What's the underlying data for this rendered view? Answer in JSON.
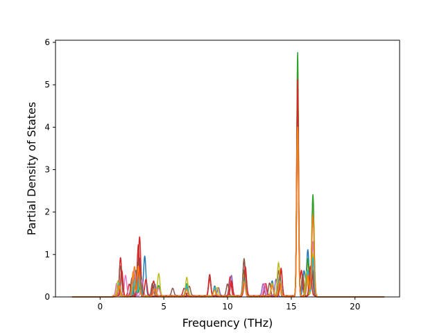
{
  "chart_data": {
    "type": "line",
    "title": "",
    "xlabel": "Frequency (THz)",
    "ylabel": "Partial Density of States",
    "xlim": [
      -3.5,
      23.5
    ],
    "ylim": [
      0,
      6.05
    ],
    "xticks": [
      0,
      5,
      10,
      15,
      20
    ],
    "yticks": [
      0,
      1,
      2,
      3,
      4,
      5,
      6
    ],
    "grid": false,
    "legend": "none",
    "x_range_of_data": [
      -2.2,
      22.3
    ],
    "colors": [
      "#1f77b4",
      "#ff7f0e",
      "#2ca02c",
      "#d62728",
      "#9467bd",
      "#8c564b",
      "#e377c2",
      "#7f7f7f",
      "#bcbd22",
      "#17becf"
    ],
    "series": [
      {
        "color": "#1f77b4",
        "peaks": [
          [
            1.5,
            0.3
          ],
          [
            2.7,
            0.5
          ],
          [
            3.1,
            0.9
          ],
          [
            3.5,
            0.95
          ],
          [
            4.3,
            0.3
          ],
          [
            6.8,
            0.25
          ],
          [
            9.0,
            0.25
          ],
          [
            11.3,
            0.6
          ],
          [
            13.5,
            0.35
          ],
          [
            14.1,
            0.5
          ],
          [
            15.5,
            5.3
          ],
          [
            16.0,
            0.6
          ],
          [
            16.3,
            1.1
          ],
          [
            16.7,
            0.6
          ]
        ]
      },
      {
        "color": "#ff7f0e",
        "peaks": [
          [
            1.5,
            0.35
          ],
          [
            2.7,
            0.7
          ],
          [
            3.1,
            0.6
          ],
          [
            4.3,
            0.25
          ],
          [
            6.8,
            0.2
          ],
          [
            9.0,
            0.2
          ],
          [
            11.3,
            0.5
          ],
          [
            13.5,
            0.3
          ],
          [
            14.1,
            0.45
          ],
          [
            15.5,
            5.5
          ],
          [
            16.3,
            0.8
          ],
          [
            16.7,
            2.3
          ]
        ]
      },
      {
        "color": "#2ca02c",
        "peaks": [
          [
            1.5,
            0.3
          ],
          [
            2.8,
            0.6
          ],
          [
            3.2,
            0.5
          ],
          [
            4.6,
            0.25
          ],
          [
            6.8,
            0.3
          ],
          [
            9.0,
            0.2
          ],
          [
            11.3,
            0.6
          ],
          [
            13.5,
            0.25
          ],
          [
            14.1,
            0.5
          ],
          [
            15.5,
            5.75
          ],
          [
            16.3,
            0.9
          ],
          [
            16.7,
            2.4
          ]
        ]
      },
      {
        "color": "#d62728",
        "peaks": [
          [
            1.6,
            0.9
          ],
          [
            2.3,
            0.3
          ],
          [
            3.1,
            1.4
          ],
          [
            4.2,
            0.35
          ],
          [
            6.6,
            0.2
          ],
          [
            8.6,
            0.5
          ],
          [
            10.2,
            0.45
          ],
          [
            11.3,
            0.85
          ],
          [
            13.0,
            0.3
          ],
          [
            14.2,
            0.65
          ],
          [
            15.5,
            5.1
          ],
          [
            15.8,
            0.6
          ],
          [
            16.6,
            0.8
          ]
        ]
      },
      {
        "color": "#9467bd",
        "peaks": [
          [
            1.5,
            0.25
          ],
          [
            2.5,
            0.45
          ],
          [
            3.1,
            0.55
          ],
          [
            4.3,
            0.25
          ],
          [
            6.8,
            0.25
          ],
          [
            9.3,
            0.2
          ],
          [
            10.3,
            0.5
          ],
          [
            11.3,
            0.5
          ],
          [
            12.8,
            0.3
          ],
          [
            13.8,
            0.4
          ],
          [
            15.5,
            4.6
          ],
          [
            16.3,
            0.4
          ],
          [
            16.7,
            1.3
          ]
        ]
      },
      {
        "color": "#8c564b",
        "peaks": [
          [
            1.6,
            0.7
          ],
          [
            2.5,
            0.4
          ],
          [
            3.0,
            0.8
          ],
          [
            4.1,
            0.3
          ],
          [
            5.7,
            0.2
          ],
          [
            7.0,
            0.25
          ],
          [
            8.6,
            0.45
          ],
          [
            10.0,
            0.3
          ],
          [
            11.3,
            0.9
          ],
          [
            13.3,
            0.3
          ],
          [
            14.0,
            0.6
          ],
          [
            15.5,
            4.4
          ],
          [
            15.9,
            0.5
          ],
          [
            16.6,
            0.7
          ]
        ]
      },
      {
        "color": "#e377c2",
        "peaks": [
          [
            1.3,
            0.3
          ],
          [
            2.0,
            0.5
          ],
          [
            2.7,
            0.6
          ],
          [
            3.3,
            0.4
          ],
          [
            4.6,
            0.2
          ],
          [
            6.8,
            0.2
          ],
          [
            9.0,
            0.2
          ],
          [
            11.3,
            0.4
          ],
          [
            12.9,
            0.3
          ],
          [
            14.1,
            0.4
          ],
          [
            15.5,
            3.9
          ],
          [
            16.3,
            0.5
          ],
          [
            16.7,
            1.3
          ]
        ]
      },
      {
        "color": "#7f7f7f",
        "peaks": [
          [
            1.5,
            0.3
          ],
          [
            2.7,
            0.45
          ],
          [
            3.1,
            0.5
          ],
          [
            4.3,
            0.2
          ],
          [
            6.8,
            0.2
          ],
          [
            9.0,
            0.2
          ],
          [
            11.3,
            0.45
          ],
          [
            13.5,
            0.25
          ],
          [
            14.1,
            0.4
          ],
          [
            15.5,
            4.2
          ],
          [
            16.3,
            0.5
          ],
          [
            16.7,
            0.8
          ]
        ]
      },
      {
        "color": "#bcbd22",
        "peaks": [
          [
            1.4,
            0.35
          ],
          [
            2.6,
            0.55
          ],
          [
            3.0,
            0.7
          ],
          [
            4.6,
            0.55
          ],
          [
            6.8,
            0.45
          ],
          [
            9.2,
            0.2
          ],
          [
            11.3,
            0.5
          ],
          [
            13.5,
            0.3
          ],
          [
            14.0,
            0.8
          ],
          [
            15.5,
            4.8
          ],
          [
            16.2,
            0.6
          ],
          [
            16.7,
            1.0
          ]
        ]
      },
      {
        "color": "#17becf",
        "peaks": [
          [
            1.5,
            0.3
          ],
          [
            2.7,
            0.4
          ],
          [
            3.1,
            0.55
          ],
          [
            4.3,
            0.2
          ],
          [
            6.8,
            0.25
          ],
          [
            9.0,
            0.2
          ],
          [
            11.3,
            0.45
          ],
          [
            13.5,
            0.25
          ],
          [
            14.1,
            0.4
          ],
          [
            15.5,
            4.5
          ],
          [
            16.3,
            0.6
          ],
          [
            16.7,
            0.9
          ]
        ]
      },
      {
        "color": "#d62728",
        "peaks": [
          [
            1.7,
            0.6
          ],
          [
            3.0,
            1.2
          ],
          [
            3.6,
            0.4
          ],
          [
            8.6,
            0.4
          ],
          [
            10.3,
            0.35
          ],
          [
            11.4,
            0.7
          ],
          [
            14.2,
            0.6
          ],
          [
            15.5,
            4.9
          ],
          [
            16.5,
            0.7
          ]
        ]
      },
      {
        "color": "#ff7f0e",
        "peaks": [
          [
            1.5,
            0.25
          ],
          [
            2.6,
            0.6
          ],
          [
            3.0,
            0.7
          ],
          [
            4.3,
            0.2
          ],
          [
            6.8,
            0.15
          ],
          [
            9.0,
            0.15
          ],
          [
            11.3,
            0.35
          ],
          [
            13.5,
            0.25
          ],
          [
            14.1,
            0.35
          ],
          [
            15.5,
            4.0
          ],
          [
            16.3,
            0.5
          ],
          [
            16.7,
            1.9
          ]
        ]
      }
    ]
  }
}
